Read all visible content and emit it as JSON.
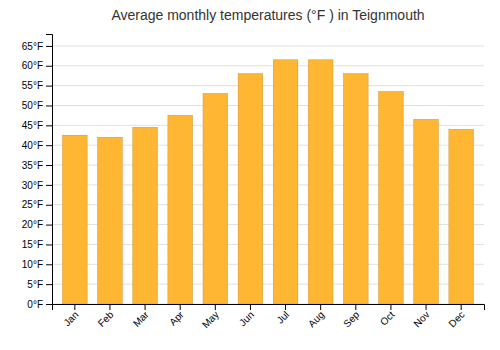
{
  "chart_data": {
    "type": "bar",
    "title": "Average monthly temperatures (°F ) in Teignmouth",
    "categories": [
      "Jan",
      "Feb",
      "Mar",
      "Apr",
      "May",
      "Jun",
      "Jul",
      "Aug",
      "Sep",
      "Oct",
      "Nov",
      "Dec"
    ],
    "values": [
      42.5,
      42.0,
      44.5,
      47.5,
      53.0,
      58.0,
      61.5,
      61.5,
      58.0,
      53.5,
      46.5,
      44.0
    ],
    "color": "#FFB733",
    "ylim": [
      0,
      68
    ],
    "yticks": [
      {
        "value": 0,
        "label": "0°F"
      },
      {
        "value": 5,
        "label": "5°F"
      },
      {
        "value": 10,
        "label": "10°F"
      },
      {
        "value": 15,
        "label": "15°F"
      },
      {
        "value": 20,
        "label": "20°F"
      },
      {
        "value": 25,
        "label": "25°F"
      },
      {
        "value": 30,
        "label": "30°F"
      },
      {
        "value": 35,
        "label": "35°F"
      },
      {
        "value": 40,
        "label": "40°F"
      },
      {
        "value": 45,
        "label": "45°F"
      },
      {
        "value": 50,
        "label": "50°F"
      },
      {
        "value": 55,
        "label": "55°F"
      },
      {
        "value": 60,
        "label": "60°F"
      },
      {
        "value": 65,
        "label": "65°F"
      }
    ],
    "grid": true
  }
}
